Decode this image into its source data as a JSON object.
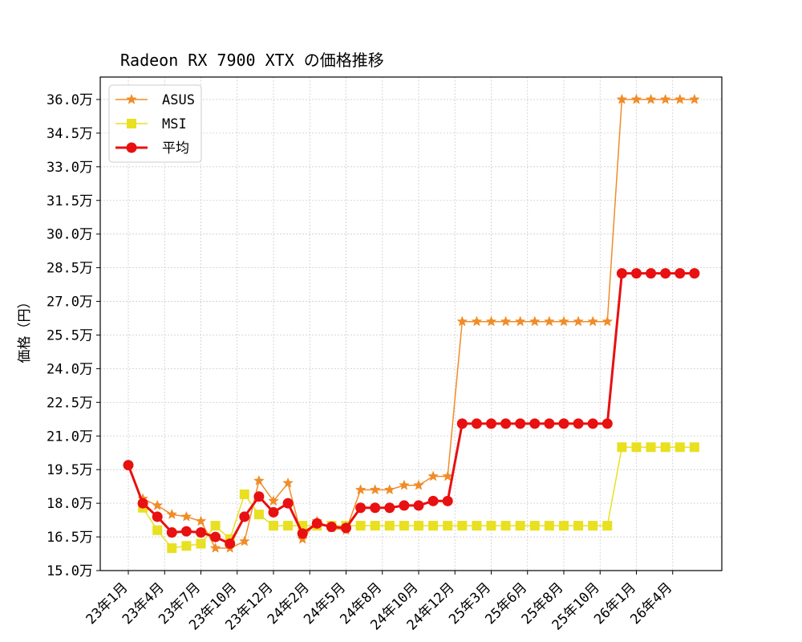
{
  "chart_data": {
    "type": "line",
    "title": "Radeon RX 7900 XTX の価格推移",
    "xlabel": "",
    "ylabel": "価格（円）",
    "ylim": [
      150000,
      370000
    ],
    "y_ticks": [
      150000,
      165000,
      180000,
      195000,
      210000,
      225000,
      240000,
      255000,
      270000,
      285000,
      300000,
      315000,
      330000,
      345000,
      360000
    ],
    "y_tick_labels": [
      "15.0万",
      "16.5万",
      "18.0万",
      "19.5万",
      "21.0万",
      "22.5万",
      "24.0万",
      "25.5万",
      "27.0万",
      "28.5万",
      "30.0万",
      "31.5万",
      "33.0万",
      "34.5万",
      "36.0万"
    ],
    "x_tick_labels": [
      "23年1月",
      "23年4月",
      "23年7月",
      "23年10月",
      "23年12月",
      "24年2月",
      "24年5月",
      "24年8月",
      "24年10月",
      "24年12月",
      "25年3月",
      "25年6月",
      "25年8月",
      "25年10月",
      "26年1月",
      "26年4月"
    ],
    "grid": true,
    "legend_position": "top-left",
    "x_count": 40,
    "series": [
      {
        "name": "ASUS",
        "color": "#f08c28",
        "marker": "star",
        "values": [
          null,
          182000,
          179000,
          175000,
          174000,
          172000,
          160000,
          160000,
          163000,
          190000,
          181000,
          189000,
          164000,
          172000,
          169000,
          168000,
          186000,
          186000,
          186000,
          188000,
          188000,
          192000,
          192000,
          261000,
          261000,
          261000,
          261000,
          261000,
          261000,
          261000,
          261000,
          261000,
          261000,
          261000,
          360000,
          360000,
          360000,
          360000,
          360000,
          360000
        ]
      },
      {
        "name": "MSI",
        "color": "#e8e020",
        "marker": "square",
        "values": [
          null,
          178000,
          168000,
          160000,
          161000,
          162000,
          170000,
          164000,
          184000,
          175000,
          170000,
          170000,
          170000,
          170000,
          170000,
          170000,
          170000,
          170000,
          170000,
          170000,
          170000,
          170000,
          170000,
          170000,
          170000,
          170000,
          170000,
          170000,
          170000,
          170000,
          170000,
          170000,
          170000,
          170000,
          205000,
          205000,
          205000,
          205000,
          205000,
          205000
        ]
      },
      {
        "name": "平均",
        "color": "#e81010",
        "marker": "circle",
        "values": [
          197000,
          180000,
          174000,
          167000,
          167500,
          167000,
          165000,
          162000,
          174000,
          183000,
          176000,
          180000,
          166500,
          171000,
          169500,
          169000,
          178000,
          178000,
          178000,
          179000,
          179000,
          181000,
          181000,
          215500,
          215500,
          215500,
          215500,
          215500,
          215500,
          215500,
          215500,
          215500,
          215500,
          215500,
          282500,
          282500,
          282500,
          282500,
          282500,
          282500
        ]
      }
    ]
  }
}
